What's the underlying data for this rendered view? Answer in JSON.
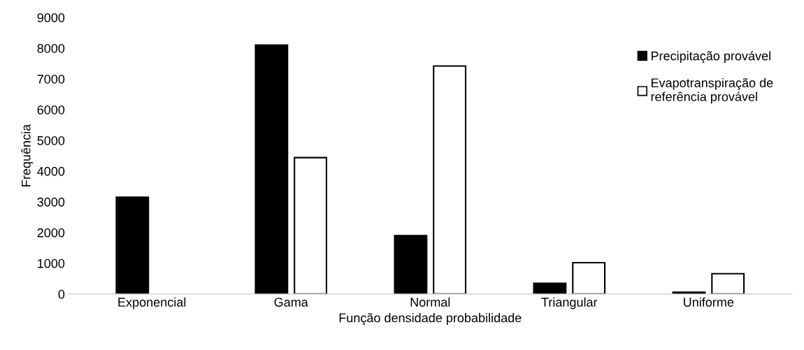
{
  "chart_data": {
    "type": "bar",
    "xlabel": "Função densidade probabilidade",
    "ylabel": "Frequência",
    "categories": [
      "Exponencial",
      "Gama",
      "Normal",
      "Triangular",
      "Uniforme"
    ],
    "series": [
      {
        "name": "Precipitação provável",
        "color": "#000000",
        "values": [
          3150,
          8100,
          1900,
          350,
          60
        ]
      },
      {
        "name": "Evapotranspiração de\nreferência provável",
        "color": "#ffffff",
        "values": [
          null,
          4440,
          7420,
          1020,
          660
        ]
      }
    ],
    "ylim": [
      0,
      9000
    ],
    "yticks": [
      0,
      1000,
      2000,
      3000,
      4000,
      5000,
      6000,
      7000,
      8000,
      9000
    ],
    "grid": false,
    "legend": "top right"
  }
}
